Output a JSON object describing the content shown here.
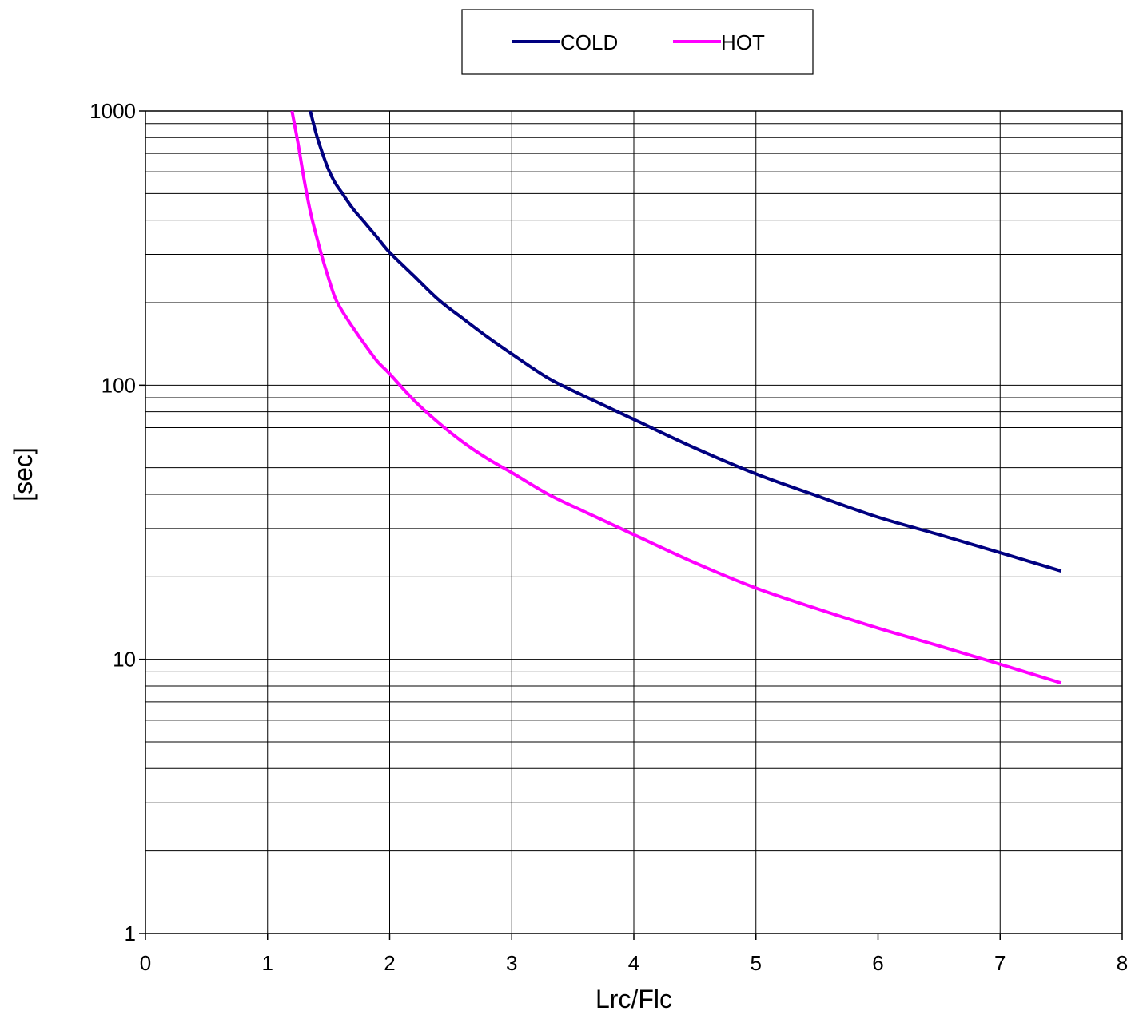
{
  "chart_data": {
    "type": "line",
    "title": "",
    "xlabel": "Lrc/Flc",
    "ylabel": "[sec]",
    "xlim": [
      0,
      8
    ],
    "ylim": [
      1,
      1000
    ],
    "yscale": "log",
    "grid": true,
    "legend_position": "top-center",
    "x_ticks": [
      "0",
      "1",
      "2",
      "3",
      "4",
      "5",
      "6",
      "7",
      "8"
    ],
    "y_ticks": [
      "1",
      "10",
      "100",
      "1000"
    ],
    "series": [
      {
        "name": "COLD",
        "color": "#000080",
        "x": [
          1.35,
          1.4,
          1.45,
          1.5,
          1.55,
          1.6,
          1.7,
          1.8,
          1.9,
          2.0,
          2.2,
          2.4,
          2.6,
          2.8,
          3.0,
          3.3,
          3.6,
          4.0,
          4.5,
          5.0,
          5.5,
          6.0,
          6.5,
          7.0,
          7.5
        ],
        "y": [
          1000,
          820,
          700,
          610,
          550,
          510,
          440,
          390,
          345,
          305,
          250,
          205,
          175,
          150,
          130,
          106,
          91,
          75,
          59,
          47.5,
          39.5,
          33,
          28.5,
          24.5,
          21
        ]
      },
      {
        "name": "HOT",
        "color": "#FF00FF",
        "x": [
          1.2,
          1.25,
          1.3,
          1.35,
          1.4,
          1.45,
          1.5,
          1.55,
          1.6,
          1.7,
          1.8,
          1.9,
          2.0,
          2.2,
          2.4,
          2.6,
          2.8,
          3.0,
          3.3,
          3.6,
          4.0,
          4.5,
          5.0,
          5.5,
          6.0,
          6.5,
          7.0,
          7.5
        ],
        "y": [
          1000,
          760,
          560,
          430,
          350,
          290,
          245,
          210,
          190,
          162,
          140,
          122,
          110,
          88,
          73,
          62,
          54,
          48,
          40,
          34.5,
          28.5,
          22.5,
          18.2,
          15.3,
          13,
          11.2,
          9.6,
          8.2
        ]
      }
    ]
  }
}
